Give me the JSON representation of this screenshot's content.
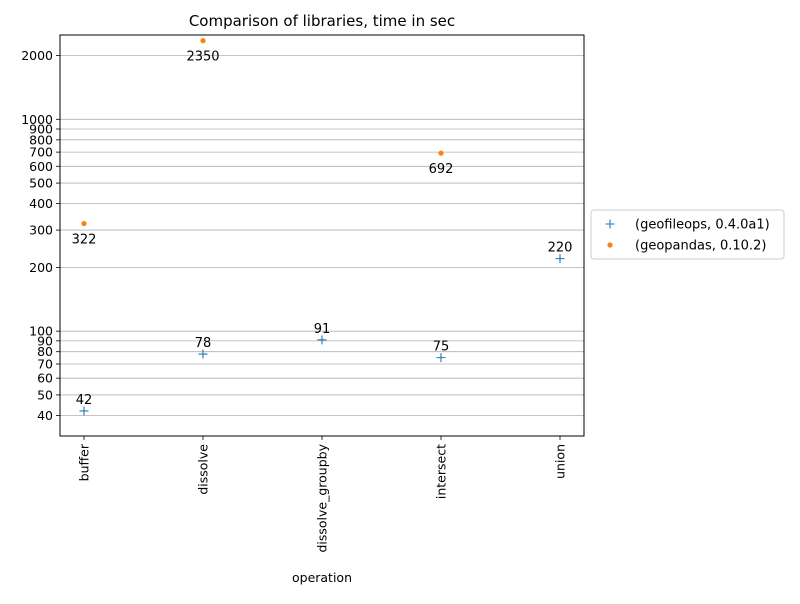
{
  "chart_data": {
    "type": "scatter",
    "title": "Comparison of libraries, time in sec",
    "xlabel": "operation",
    "ylabel": "",
    "yscale": "log",
    "ylim": [
      32,
      2500
    ],
    "grid": "y-major-and-minor",
    "legend_position": "outside-right",
    "categories": [
      "buffer",
      "dissolve",
      "dissolve_groupby",
      "intersect",
      "union"
    ],
    "y_ticks": [
      40,
      50,
      60,
      70,
      80,
      90,
      100,
      200,
      300,
      400,
      500,
      600,
      700,
      800,
      900,
      1000,
      2000
    ],
    "y_tick_labels": [
      "40",
      "50",
      "60",
      "70",
      "80",
      "90",
      "100",
      "200",
      "300",
      "400",
      "500",
      "600",
      "700",
      "800",
      "900",
      "1000",
      "2000"
    ],
    "series": [
      {
        "name": "(geofileops, 0.4.0a1)",
        "color": "#1f77b4",
        "marker": "plus",
        "label_position": "above",
        "values": [
          42,
          78,
          91,
          75,
          220
        ],
        "labels": [
          "42",
          "78",
          "91",
          "75",
          "220"
        ]
      },
      {
        "name": "(geopandas, 0.10.2)",
        "color": "#ff7f0e",
        "marker": "dot",
        "label_position": "below",
        "values": [
          322,
          2350,
          null,
          692,
          null
        ],
        "labels": [
          "322",
          "2350",
          "",
          "692",
          ""
        ]
      }
    ]
  }
}
